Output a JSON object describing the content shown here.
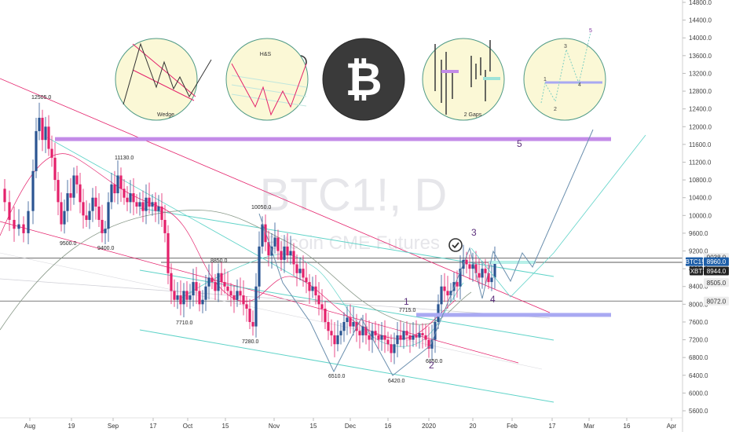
{
  "chart_data": {
    "type": "candlestick",
    "symbol": "BTC1!, D",
    "subtitle": "Bitcoin CME Futures",
    "x_labels": [
      "Aug",
      "19",
      "Sep",
      "17",
      "Oct",
      "15",
      "Nov",
      "15",
      "Dec",
      "16",
      "2020",
      "20",
      "Feb",
      "17",
      "Mar",
      "16",
      "Apr"
    ],
    "y_ticks": [
      5600,
      6000,
      6400,
      6800,
      7200,
      7600,
      8000,
      8400,
      8800,
      9200,
      9600,
      10000,
      10400,
      10800,
      11200,
      11600,
      12000,
      12400,
      12800,
      13200,
      13600,
      14000,
      14400,
      14800
    ],
    "ylim": [
      5500,
      14900
    ],
    "price_labels": [
      {
        "text": "12505.0",
        "value": 12505
      },
      {
        "text": "9500.0",
        "value": 9500
      },
      {
        "text": "9400.0",
        "value": 9400
      },
      {
        "text": "11130.0",
        "value": 11130
      },
      {
        "text": "10050.0",
        "value": 10050
      },
      {
        "text": "8850.0",
        "value": 8850
      },
      {
        "text": "7710.0",
        "value": 7710
      },
      {
        "text": "7280.0",
        "value": 7280
      },
      {
        "text": "6510.0",
        "value": 6510
      },
      {
        "text": "6420.0",
        "value": 6420
      },
      {
        "text": "7715.0",
        "value": 7715
      },
      {
        "text": "6850.0",
        "value": 6850
      }
    ],
    "axis_badges": [
      {
        "text": "9038.0",
        "value": 9038,
        "bg": "#ececec",
        "fg": "#333333"
      },
      {
        "text": "BTC1!",
        "value": 8960,
        "bg": "#1f5fa8",
        "fg": "#ffffff"
      },
      {
        "text": "8960.0",
        "value": 8960,
        "bg": "#1f5fa8",
        "fg": "#ffffff"
      },
      {
        "text": "XBT",
        "value": 8944,
        "bg": "#222222",
        "fg": "#ffffff"
      },
      {
        "text": "8944.0",
        "value": 8944,
        "bg": "#222222",
        "fg": "#ffffff"
      },
      {
        "text": "8505.0",
        "value": 8505,
        "bg": "#ececec",
        "fg": "#333333"
      },
      {
        "text": "8072.0",
        "value": 8072,
        "bg": "#ececec",
        "fg": "#333333"
      }
    ],
    "wave_labels": [
      "1",
      "2",
      "3",
      "4",
      "5"
    ],
    "levels": [
      {
        "value": 11720,
        "color": "#c38be8",
        "label": "resistance"
      },
      {
        "value": 7760,
        "color": "#a9a9f2",
        "label": "support"
      }
    ],
    "pattern_circles": [
      {
        "caption": "Wedge",
        "icon": "wedge-pattern"
      },
      {
        "caption": "H&S",
        "icon": "head-and-shoulders-pattern"
      },
      {
        "caption": "",
        "icon": "bitcoin-logo-icon"
      },
      {
        "caption": "2 Gaps",
        "icon": "gaps-pattern"
      },
      {
        "caption": "",
        "icon": "elliott-wave-pattern",
        "labels": [
          "1",
          "2",
          "3",
          "4",
          "5"
        ]
      }
    ],
    "colors": {
      "up": "#2b5592",
      "down": "#e4216b",
      "accent_purple": "#c38be8",
      "teal": "#5fd3c8"
    }
  }
}
